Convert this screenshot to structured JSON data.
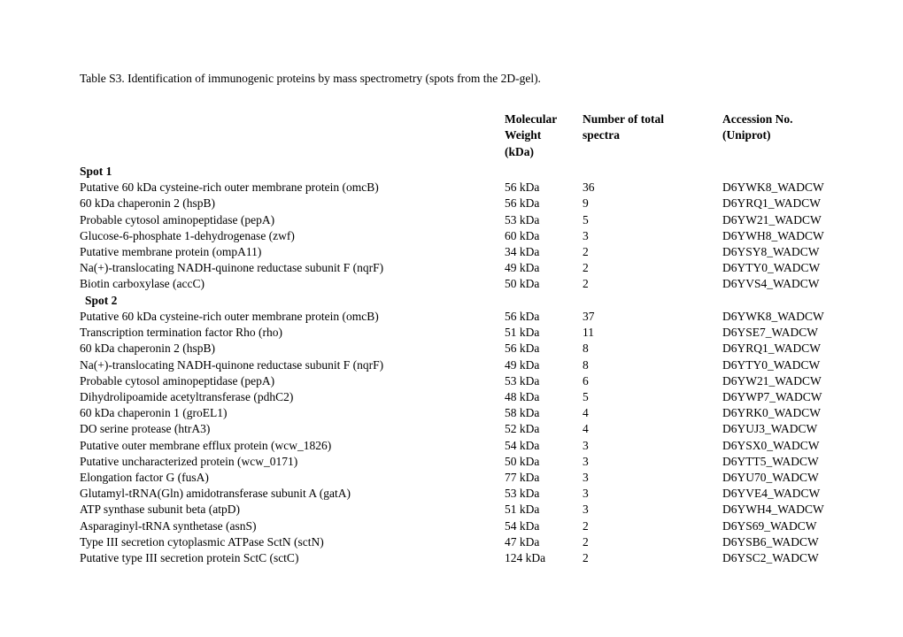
{
  "title": "Table S3. Identification of immunogenic proteins by mass spectrometry (spots from the 2D-gel).",
  "headers": {
    "mw_line1": "Molecular",
    "mw_line2": "Weight",
    "mw_line3": "(kDa)",
    "spectra_line1": "Number of total",
    "spectra_line2": "spectra",
    "acc_line1": "Accession No.",
    "acc_line2": "(Uniprot)"
  },
  "spots": {
    "spot1_label": "Spot 1",
    "spot2_label": " Spot 2"
  },
  "rows1": [
    {
      "name": "Putative 60 kDa cysteine-rich outer membrane protein  (omcB)",
      "mw": "56 kDa",
      "spectra": "36",
      "acc": "D6YWK8_WADCW"
    },
    {
      "name": "60 kDa chaperonin 2  (hspB)",
      "mw": "56 kDa",
      "spectra": "9",
      "acc": "D6YRQ1_WADCW"
    },
    {
      "name": "Probable cytosol aminopeptidase  (pepA)",
      "mw": "53 kDa",
      "spectra": "5",
      "acc": "D6YW21_WADCW"
    },
    {
      "name": "Glucose-6-phosphate 1-dehydrogenase  (zwf)",
      "mw": "60 kDa",
      "spectra": "3",
      "acc": "D6YWH8_WADCW"
    },
    {
      "name": "Putative membrane protein  (ompA11)",
      "mw": "34 kDa",
      "spectra": "2",
      "acc": "D6YSY8_WADCW"
    },
    {
      "name": "Na(+)-translocating NADH-quinone reductase subunit F  (nqrF)",
      "mw": "49 kDa",
      "spectra": "2",
      "acc": "D6YTY0_WADCW"
    },
    {
      "name": "Biotin carboxylase  (accC)",
      "mw": "50 kDa",
      "spectra": "2",
      "acc": "D6YVS4_WADCW"
    }
  ],
  "rows2": [
    {
      "name": "Putative 60 kDa cysteine-rich outer membrane protein  (omcB)",
      "mw": "56 kDa",
      "spectra": "37",
      "acc": "D6YWK8_WADCW"
    },
    {
      "name": "Transcription termination factor Rho  (rho)",
      "mw": "51 kDa",
      "spectra": "11",
      "acc": "D6YSE7_WADCW"
    },
    {
      "name": "60 kDa chaperonin 2  (hspB)",
      "mw": "56 kDa",
      "spectra": "8",
      "acc": "D6YRQ1_WADCW"
    },
    {
      "name": "Na(+)-translocating NADH-quinone reductase subunit F  (nqrF)",
      "mw": "49 kDa",
      "spectra": "8",
      "acc": "D6YTY0_WADCW"
    },
    {
      "name": "Probable cytosol aminopeptidase  (pepA)",
      "mw": "53 kDa",
      "spectra": "6",
      "acc": "D6YW21_WADCW"
    },
    {
      "name": "Dihydrolipoamide acetyltransferase  (pdhC2)",
      "mw": "48 kDa",
      "spectra": "5",
      "acc": "D6YWP7_WADCW"
    },
    {
      "name": "60 kDa chaperonin 1  (groEL1)",
      "mw": "58 kDa",
      "spectra": "4",
      "acc": "D6YRK0_WADCW"
    },
    {
      "name": "DO serine protease  (htrA3)",
      "mw": "52 kDa",
      "spectra": "4",
      "acc": "D6YUJ3_WADCW"
    },
    {
      "name": "Putative outer membrane efflux protein  (wcw_1826)",
      "mw": "54 kDa",
      "spectra": "3",
      "acc": "D6YSX0_WADCW"
    },
    {
      "name": "Putative uncharacterized protein  (wcw_0171)",
      "mw": "50 kDa",
      "spectra": "3",
      "acc": "D6YTT5_WADCW"
    },
    {
      "name": "Elongation factor G  (fusA)",
      "mw": "77 kDa",
      "spectra": "3",
      "acc": "D6YU70_WADCW"
    },
    {
      "name": "Glutamyl-tRNA(Gln) amidotransferase subunit A  (gatA)",
      "mw": "53 kDa",
      "spectra": "3",
      "acc": "D6YVE4_WADCW"
    },
    {
      "name": "ATP synthase subunit beta  (atpD)",
      "mw": "51 kDa",
      "spectra": "3",
      "acc": "D6YWH4_WADCW"
    },
    {
      "name": "Asparaginyl-tRNA synthetase  (asnS)",
      "mw": "54 kDa",
      "spectra": "2",
      "acc": "D6YS69_WADCW"
    },
    {
      "name": "Type III secretion cytoplasmic ATPase SctN  (sctN)",
      "mw": "47 kDa",
      "spectra": "2",
      "acc": "D6YSB6_WADCW"
    },
    {
      "name": "Putative type III secretion protein SctC  (sctC)",
      "mw": "124 kDa",
      "spectra": "2",
      "acc": "D6YSC2_WADCW"
    }
  ]
}
